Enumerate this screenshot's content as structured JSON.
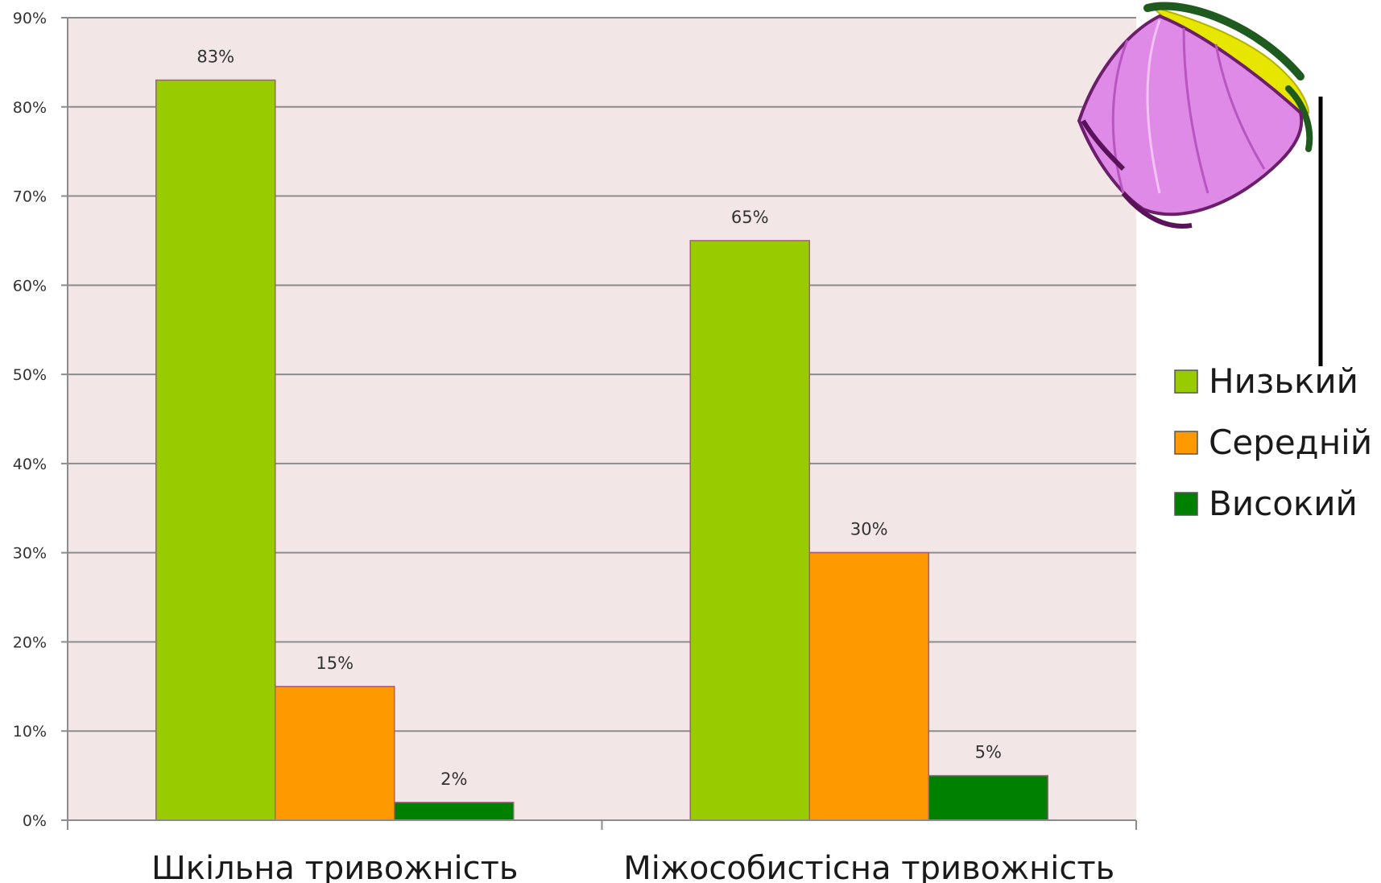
{
  "chart_data": {
    "type": "bar",
    "categories": [
      "Шкільна тривожність",
      "Міжособистісна тривожність"
    ],
    "series": [
      {
        "name": "Низький",
        "values": [
          83,
          65
        ],
        "color": "#99cc00"
      },
      {
        "name": "Середній",
        "values": [
          15,
          30
        ],
        "color": "#ff9900"
      },
      {
        "name": "Високий",
        "values": [
          2,
          5
        ],
        "color": "#008000"
      }
    ],
    "data_labels": [
      [
        "83%",
        "65%"
      ],
      [
        "15%",
        "30%"
      ],
      [
        "2%",
        "5%"
      ]
    ],
    "y_ticks": [
      "0%",
      "10%",
      "20%",
      "30%",
      "40%",
      "50%",
      "60%",
      "70%",
      "80%",
      "90%"
    ],
    "ylim": [
      0,
      90
    ],
    "grid": true,
    "legend": "right",
    "plot_background": "#f2e6e6",
    "decoration": "flower-icon"
  }
}
